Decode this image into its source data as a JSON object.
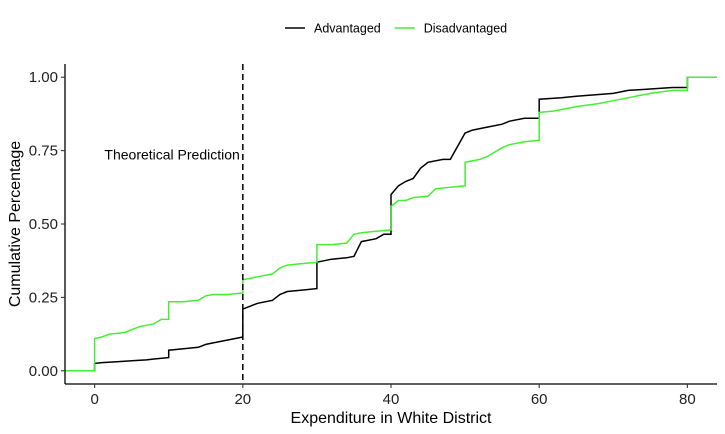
{
  "chart_data": {
    "type": "line",
    "xlabel": "Expenditure in White District",
    "ylabel": "Cumulative Percentage",
    "xlim": [
      -4,
      84
    ],
    "ylim": [
      -0.045,
      1.045
    ],
    "x_ticks": [
      0,
      20,
      40,
      60,
      80
    ],
    "x_tick_labels": [
      "0",
      "20",
      "40",
      "60",
      "80"
    ],
    "y_ticks": [
      0,
      0.25,
      0.5,
      0.75,
      1.0
    ],
    "y_tick_labels": [
      "0.00",
      "0.25",
      "0.50",
      "0.75",
      "1.00"
    ],
    "grid": false,
    "legend_position": "top",
    "step": true,
    "reference_line": {
      "x": 20,
      "style": "dashed",
      "label": "Theoretical Prediction"
    },
    "series": [
      {
        "name": "Advantaged",
        "color": "#000000",
        "points": [
          [
            -4,
            0
          ],
          [
            0,
            0
          ],
          [
            0,
            0.025
          ],
          [
            1,
            0.028
          ],
          [
            3,
            0.031
          ],
          [
            5,
            0.034
          ],
          [
            7,
            0.037
          ],
          [
            8,
            0.04
          ],
          [
            10,
            0.045
          ],
          [
            10,
            0.07
          ],
          [
            12,
            0.075
          ],
          [
            14,
            0.08
          ],
          [
            15,
            0.09
          ],
          [
            16,
            0.095
          ],
          [
            19,
            0.11
          ],
          [
            20,
            0.115
          ],
          [
            20,
            0.21
          ],
          [
            21,
            0.22
          ],
          [
            22,
            0.23
          ],
          [
            24,
            0.24
          ],
          [
            25,
            0.26
          ],
          [
            26,
            0.27
          ],
          [
            28,
            0.275
          ],
          [
            30,
            0.28
          ],
          [
            30,
            0.37
          ],
          [
            32,
            0.38
          ],
          [
            34,
            0.385
          ],
          [
            35,
            0.39
          ],
          [
            36,
            0.44
          ],
          [
            38,
            0.45
          ],
          [
            39,
            0.465
          ],
          [
            40,
            0.465
          ],
          [
            40,
            0.6
          ],
          [
            41,
            0.63
          ],
          [
            42,
            0.645
          ],
          [
            43,
            0.655
          ],
          [
            44,
            0.69
          ],
          [
            45,
            0.71
          ],
          [
            47,
            0.72
          ],
          [
            48,
            0.72
          ],
          [
            50,
            0.81
          ],
          [
            51,
            0.82
          ],
          [
            53,
            0.83
          ],
          [
            55,
            0.84
          ],
          [
            56,
            0.85
          ],
          [
            58,
            0.86
          ],
          [
            60,
            0.86
          ],
          [
            60,
            0.925
          ],
          [
            63,
            0.93
          ],
          [
            65,
            0.935
          ],
          [
            70,
            0.945
          ],
          [
            72,
            0.955
          ],
          [
            75,
            0.96
          ],
          [
            78,
            0.965
          ],
          [
            80,
            0.965
          ],
          [
            80,
            1.0
          ],
          [
            84,
            1.0
          ]
        ]
      },
      {
        "name": "Disadvantaged",
        "color": "#44ee33",
        "points": [
          [
            -4,
            0
          ],
          [
            0,
            0
          ],
          [
            0,
            0.11
          ],
          [
            1,
            0.115
          ],
          [
            2,
            0.125
          ],
          [
            4,
            0.13
          ],
          [
            5,
            0.14
          ],
          [
            6,
            0.15
          ],
          [
            8,
            0.16
          ],
          [
            9,
            0.175
          ],
          [
            10,
            0.175
          ],
          [
            10,
            0.235
          ],
          [
            12,
            0.235
          ],
          [
            14,
            0.24
          ],
          [
            15,
            0.255
          ],
          [
            16,
            0.26
          ],
          [
            18,
            0.26
          ],
          [
            20,
            0.265
          ],
          [
            20,
            0.31
          ],
          [
            21,
            0.315
          ],
          [
            22,
            0.32
          ],
          [
            24,
            0.33
          ],
          [
            25,
            0.35
          ],
          [
            26,
            0.36
          ],
          [
            28,
            0.365
          ],
          [
            30,
            0.37
          ],
          [
            30,
            0.43
          ],
          [
            32,
            0.43
          ],
          [
            34,
            0.435
          ],
          [
            35,
            0.465
          ],
          [
            36,
            0.47
          ],
          [
            38,
            0.475
          ],
          [
            40,
            0.48
          ],
          [
            40,
            0.56
          ],
          [
            41,
            0.58
          ],
          [
            42,
            0.58
          ],
          [
            43,
            0.59
          ],
          [
            45,
            0.595
          ],
          [
            46,
            0.62
          ],
          [
            48,
            0.625
          ],
          [
            50,
            0.63
          ],
          [
            50,
            0.71
          ],
          [
            52,
            0.72
          ],
          [
            53,
            0.73
          ],
          [
            55,
            0.76
          ],
          [
            56,
            0.77
          ],
          [
            58,
            0.78
          ],
          [
            60,
            0.785
          ],
          [
            60,
            0.88
          ],
          [
            62,
            0.885
          ],
          [
            65,
            0.9
          ],
          [
            68,
            0.91
          ],
          [
            70,
            0.92
          ],
          [
            75,
            0.945
          ],
          [
            78,
            0.955
          ],
          [
            80,
            0.955
          ],
          [
            80,
            1.0
          ],
          [
            84,
            1.0
          ]
        ]
      }
    ]
  }
}
